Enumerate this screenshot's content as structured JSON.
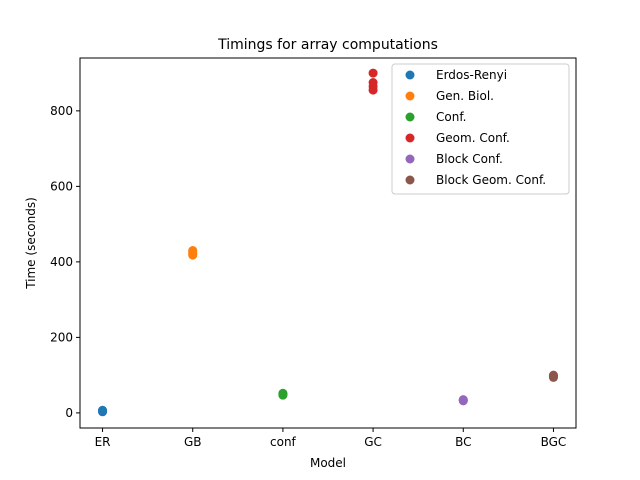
{
  "chart_data": {
    "type": "scatter",
    "title": "Timings for array computations",
    "xlabel": "Model",
    "ylabel": "Time (seconds)",
    "categories": [
      "ER",
      "GB",
      "conf",
      "GC",
      "BC",
      "BGC"
    ],
    "yticks": [
      0,
      200,
      400,
      600,
      800
    ],
    "ylim": [
      -40,
      940
    ],
    "grid": false,
    "legend_position": "top-right",
    "series": [
      {
        "name": "Erdos-Renyi",
        "color": "#1f77b4",
        "x": "ER",
        "values": [
          3,
          4,
          5,
          6,
          7
        ]
      },
      {
        "name": "Gen. Biol.",
        "color": "#ff7f0e",
        "x": "GB",
        "values": [
          418,
          422,
          426,
          430
        ]
      },
      {
        "name": "Conf.",
        "color": "#2ca02c",
        "x": "conf",
        "values": [
          47,
          49,
          51,
          52
        ]
      },
      {
        "name": "Geom. Conf.",
        "color": "#d62728",
        "x": "GC",
        "values": [
          855,
          865,
          875,
          900
        ]
      },
      {
        "name": "Block Conf.",
        "color": "#9467bd",
        "x": "BC",
        "values": [
          32,
          33,
          34,
          35
        ]
      },
      {
        "name": "Block Geom. Conf.",
        "color": "#8c564b",
        "x": "BGC",
        "values": [
          94,
          96,
          98,
          100
        ]
      }
    ]
  }
}
